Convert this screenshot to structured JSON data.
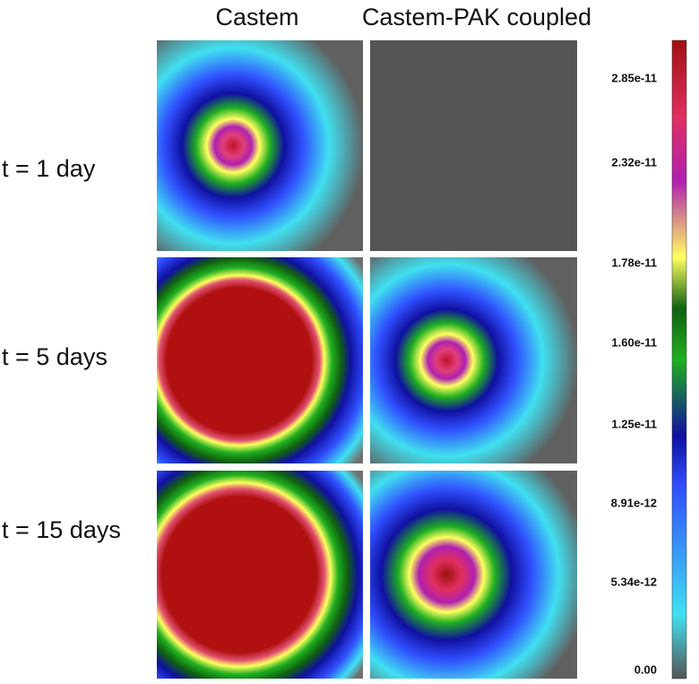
{
  "columns": [
    "Castem",
    "Castem-PAK coupled"
  ],
  "rows": [
    "t = 1 day",
    "t = 5 days",
    "t = 15 days"
  ],
  "colorbar": {
    "labels": [
      "2.85e-11",
      "2.32e-11",
      "1.78e-11",
      "1.60e-11",
      "1.25e-11",
      "8.91e-12",
      "5.34e-12",
      "0.00"
    ]
  }
}
